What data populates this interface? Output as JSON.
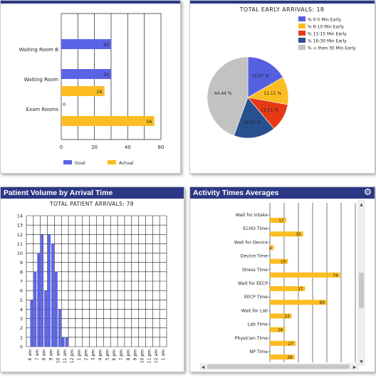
{
  "panels": {
    "top_left": {
      "chart_data": {
        "type": "bar",
        "orientation": "horizontal",
        "categories": [
          "Waiting Room B",
          "Waiting Room",
          "Exam Rooms"
        ],
        "series": [
          {
            "name": "Goal",
            "values": [
              30,
              30,
              0
            ],
            "color": "#5b63e6"
          },
          {
            "name": "Actual",
            "values": [
              null,
              26,
              56
            ],
            "color": "#fbbd22"
          }
        ],
        "xlim": [
          0,
          60
        ],
        "xticks": [
          "0",
          "20",
          "40",
          "60"
        ],
        "legend": "bottom",
        "grid": true
      }
    },
    "top_right": {
      "chart_data": {
        "type": "pie",
        "title": "TOTAL EARLY ARRIVALS: 18",
        "legend": "top-right",
        "slices": [
          {
            "label": "% 0-5 Min Early",
            "value": 16.67,
            "text": "16.67 %",
            "color": "#5460e0"
          },
          {
            "label": "% 6-10 Min Early",
            "value": 11.11,
            "text": "11.11 %",
            "color": "#fbbd22"
          },
          {
            "label": "% 11-15 Min Early",
            "value": 11.11,
            "text": "11.11 %",
            "color": "#e63a17"
          },
          {
            "label": "% 16-30 Min Early",
            "value": 16.67,
            "text": "16.67 %",
            "color": "#27508e"
          },
          {
            "label": "% > then 30 Min Early",
            "value": 44.44,
            "text": "44.44 %",
            "color": "#c2c2c2"
          }
        ]
      }
    },
    "bottom_left": {
      "header": "Patient Volume by Arrival Time",
      "chart_data": {
        "type": "bar",
        "title": "TOTAL PATIENT ARRIVALS: 78",
        "categories": [
          "6 am",
          "6 am",
          "7 am",
          "7 am",
          "8 am",
          "8 am",
          "9 am",
          "9 am",
          "10 am",
          "10 am",
          "11 am",
          "11 am",
          "12 pm",
          "12 pm",
          "1 pm",
          "1 pm",
          "2 pm",
          "2 pm",
          "3 pm",
          "3 pm",
          "4 pm",
          "4 pm",
          "5 pm",
          "5 pm",
          "6 pm",
          "6 pm",
          "7 pm",
          "7 pm",
          "8 pm",
          "8 pm",
          "9 pm",
          "9 pm",
          "10 pm",
          "10 pm",
          "11 pm",
          "11 pm",
          "12 am",
          "12 am",
          "1 am",
          "1 am"
        ],
        "values": [
          0,
          5,
          8,
          10,
          12,
          6,
          12,
          11,
          8,
          4,
          1,
          1,
          0,
          0,
          0,
          0,
          0,
          0,
          0,
          0,
          0,
          0,
          0,
          0,
          0,
          0,
          0,
          0,
          0,
          0,
          0,
          0,
          0,
          0,
          0,
          0,
          0,
          0,
          0,
          0
        ],
        "color": "#5b63e6",
        "ylim": [
          0,
          14
        ],
        "yticks": [
          "0",
          "1",
          "2",
          "3",
          "4",
          "5",
          "6",
          "7",
          "8",
          "9",
          "10",
          "11",
          "12",
          "13",
          "14"
        ],
        "xtick_labels": [
          "6 am",
          "7 am",
          "8 am",
          "9 am",
          "10 am",
          "11 am",
          "12 pm",
          "1 pm",
          "2 pm",
          "3 pm",
          "4 pm",
          "5 pm",
          "6 pm",
          "7 pm",
          "8 pm",
          "9 pm",
          "10 pm",
          "11 pm",
          "12 am",
          "1 am"
        ],
        "grid": true
      }
    },
    "bottom_right": {
      "header": "Activity Times Averages",
      "gear_icon": "gear-icon",
      "chart_data": {
        "type": "bar",
        "orientation": "horizontal",
        "categories": [
          "Wait for Intake",
          "ECHO Time",
          "Wait for Device",
          "Device Time",
          "Stress Time",
          "Wait for EECP",
          "EECP Time",
          "Wait for Lab",
          "Lab Time",
          "Physician Time",
          "NP Time"
        ],
        "values": [
          17,
          35,
          4,
          19,
          74,
          37,
          60,
          23,
          16,
          27,
          26
        ],
        "color": "#fbbd22",
        "grid": true
      }
    }
  }
}
